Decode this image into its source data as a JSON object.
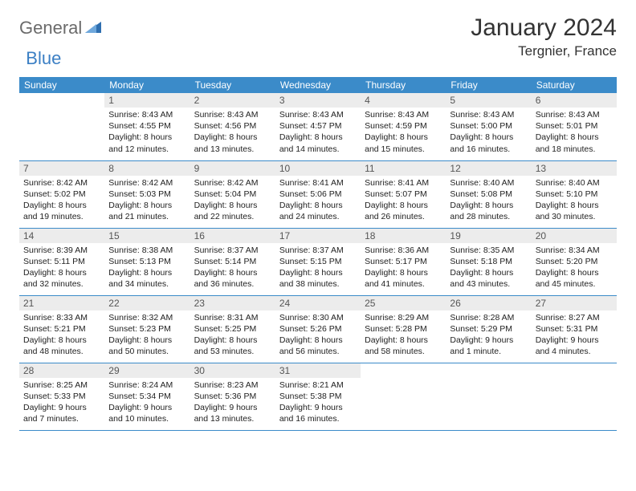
{
  "logo": {
    "general": "General",
    "blue": "Blue"
  },
  "title": "January 2024",
  "location": "Tergnier, France",
  "colors": {
    "header_bg": "#3b8bc9",
    "header_text": "#ffffff",
    "daynum_bg": "#ececec",
    "border": "#3b8bc9",
    "logo_gray": "#6b6b6b",
    "logo_blue": "#3b7fc4"
  },
  "weekdays": [
    "Sunday",
    "Monday",
    "Tuesday",
    "Wednesday",
    "Thursday",
    "Friday",
    "Saturday"
  ],
  "weeks": [
    [
      null,
      {
        "n": "1",
        "sr": "Sunrise: 8:43 AM",
        "ss": "Sunset: 4:55 PM",
        "d1": "Daylight: 8 hours",
        "d2": "and 12 minutes."
      },
      {
        "n": "2",
        "sr": "Sunrise: 8:43 AM",
        "ss": "Sunset: 4:56 PM",
        "d1": "Daylight: 8 hours",
        "d2": "and 13 minutes."
      },
      {
        "n": "3",
        "sr": "Sunrise: 8:43 AM",
        "ss": "Sunset: 4:57 PM",
        "d1": "Daylight: 8 hours",
        "d2": "and 14 minutes."
      },
      {
        "n": "4",
        "sr": "Sunrise: 8:43 AM",
        "ss": "Sunset: 4:59 PM",
        "d1": "Daylight: 8 hours",
        "d2": "and 15 minutes."
      },
      {
        "n": "5",
        "sr": "Sunrise: 8:43 AM",
        "ss": "Sunset: 5:00 PM",
        "d1": "Daylight: 8 hours",
        "d2": "and 16 minutes."
      },
      {
        "n": "6",
        "sr": "Sunrise: 8:43 AM",
        "ss": "Sunset: 5:01 PM",
        "d1": "Daylight: 8 hours",
        "d2": "and 18 minutes."
      }
    ],
    [
      {
        "n": "7",
        "sr": "Sunrise: 8:42 AM",
        "ss": "Sunset: 5:02 PM",
        "d1": "Daylight: 8 hours",
        "d2": "and 19 minutes."
      },
      {
        "n": "8",
        "sr": "Sunrise: 8:42 AM",
        "ss": "Sunset: 5:03 PM",
        "d1": "Daylight: 8 hours",
        "d2": "and 21 minutes."
      },
      {
        "n": "9",
        "sr": "Sunrise: 8:42 AM",
        "ss": "Sunset: 5:04 PM",
        "d1": "Daylight: 8 hours",
        "d2": "and 22 minutes."
      },
      {
        "n": "10",
        "sr": "Sunrise: 8:41 AM",
        "ss": "Sunset: 5:06 PM",
        "d1": "Daylight: 8 hours",
        "d2": "and 24 minutes."
      },
      {
        "n": "11",
        "sr": "Sunrise: 8:41 AM",
        "ss": "Sunset: 5:07 PM",
        "d1": "Daylight: 8 hours",
        "d2": "and 26 minutes."
      },
      {
        "n": "12",
        "sr": "Sunrise: 8:40 AM",
        "ss": "Sunset: 5:08 PM",
        "d1": "Daylight: 8 hours",
        "d2": "and 28 minutes."
      },
      {
        "n": "13",
        "sr": "Sunrise: 8:40 AM",
        "ss": "Sunset: 5:10 PM",
        "d1": "Daylight: 8 hours",
        "d2": "and 30 minutes."
      }
    ],
    [
      {
        "n": "14",
        "sr": "Sunrise: 8:39 AM",
        "ss": "Sunset: 5:11 PM",
        "d1": "Daylight: 8 hours",
        "d2": "and 32 minutes."
      },
      {
        "n": "15",
        "sr": "Sunrise: 8:38 AM",
        "ss": "Sunset: 5:13 PM",
        "d1": "Daylight: 8 hours",
        "d2": "and 34 minutes."
      },
      {
        "n": "16",
        "sr": "Sunrise: 8:37 AM",
        "ss": "Sunset: 5:14 PM",
        "d1": "Daylight: 8 hours",
        "d2": "and 36 minutes."
      },
      {
        "n": "17",
        "sr": "Sunrise: 8:37 AM",
        "ss": "Sunset: 5:15 PM",
        "d1": "Daylight: 8 hours",
        "d2": "and 38 minutes."
      },
      {
        "n": "18",
        "sr": "Sunrise: 8:36 AM",
        "ss": "Sunset: 5:17 PM",
        "d1": "Daylight: 8 hours",
        "d2": "and 41 minutes."
      },
      {
        "n": "19",
        "sr": "Sunrise: 8:35 AM",
        "ss": "Sunset: 5:18 PM",
        "d1": "Daylight: 8 hours",
        "d2": "and 43 minutes."
      },
      {
        "n": "20",
        "sr": "Sunrise: 8:34 AM",
        "ss": "Sunset: 5:20 PM",
        "d1": "Daylight: 8 hours",
        "d2": "and 45 minutes."
      }
    ],
    [
      {
        "n": "21",
        "sr": "Sunrise: 8:33 AM",
        "ss": "Sunset: 5:21 PM",
        "d1": "Daylight: 8 hours",
        "d2": "and 48 minutes."
      },
      {
        "n": "22",
        "sr": "Sunrise: 8:32 AM",
        "ss": "Sunset: 5:23 PM",
        "d1": "Daylight: 8 hours",
        "d2": "and 50 minutes."
      },
      {
        "n": "23",
        "sr": "Sunrise: 8:31 AM",
        "ss": "Sunset: 5:25 PM",
        "d1": "Daylight: 8 hours",
        "d2": "and 53 minutes."
      },
      {
        "n": "24",
        "sr": "Sunrise: 8:30 AM",
        "ss": "Sunset: 5:26 PM",
        "d1": "Daylight: 8 hours",
        "d2": "and 56 minutes."
      },
      {
        "n": "25",
        "sr": "Sunrise: 8:29 AM",
        "ss": "Sunset: 5:28 PM",
        "d1": "Daylight: 8 hours",
        "d2": "and 58 minutes."
      },
      {
        "n": "26",
        "sr": "Sunrise: 8:28 AM",
        "ss": "Sunset: 5:29 PM",
        "d1": "Daylight: 9 hours",
        "d2": "and 1 minute."
      },
      {
        "n": "27",
        "sr": "Sunrise: 8:27 AM",
        "ss": "Sunset: 5:31 PM",
        "d1": "Daylight: 9 hours",
        "d2": "and 4 minutes."
      }
    ],
    [
      {
        "n": "28",
        "sr": "Sunrise: 8:25 AM",
        "ss": "Sunset: 5:33 PM",
        "d1": "Daylight: 9 hours",
        "d2": "and 7 minutes."
      },
      {
        "n": "29",
        "sr": "Sunrise: 8:24 AM",
        "ss": "Sunset: 5:34 PM",
        "d1": "Daylight: 9 hours",
        "d2": "and 10 minutes."
      },
      {
        "n": "30",
        "sr": "Sunrise: 8:23 AM",
        "ss": "Sunset: 5:36 PM",
        "d1": "Daylight: 9 hours",
        "d2": "and 13 minutes."
      },
      {
        "n": "31",
        "sr": "Sunrise: 8:21 AM",
        "ss": "Sunset: 5:38 PM",
        "d1": "Daylight: 9 hours",
        "d2": "and 16 minutes."
      },
      null,
      null,
      null
    ]
  ]
}
